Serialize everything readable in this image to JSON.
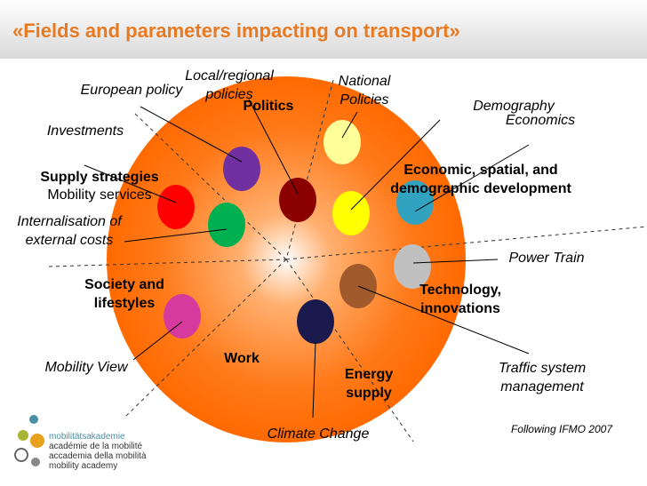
{
  "title": "«Fields and parameters impacting on transport»",
  "labels": [
    {
      "lines": [
        "Local/regional",
        "policies"
      ]
    },
    {
      "lines": [
        "European policy"
      ]
    },
    {
      "lines": [
        "Politics"
      ]
    },
    {
      "lines": [
        "National",
        "Policies"
      ]
    },
    {
      "lines": [
        "Demography"
      ]
    },
    {
      "lines": [
        "Economics"
      ]
    },
    {
      "lines": [
        "Investments"
      ]
    },
    {
      "lines": [
        "Supply strategies"
      ]
    },
    {
      "lines": [
        "Mobility services"
      ]
    },
    {
      "lines": [
        "Internalisation of",
        "external costs"
      ]
    },
    {
      "lines": [
        "Economic, spatial, and",
        "demographic development"
      ]
    },
    {
      "lines": [
        "Power Train"
      ]
    },
    {
      "lines": [
        "Society and",
        "lifestyles"
      ]
    },
    {
      "lines": [
        "Technology,",
        "innovations"
      ]
    },
    {
      "lines": [
        "Work"
      ]
    },
    {
      "lines": [
        "Mobility View"
      ]
    },
    {
      "lines": [
        "Energy",
        "supply"
      ]
    },
    {
      "lines": [
        "Traffic system",
        "management"
      ]
    },
    {
      "lines": [
        "Climate Change"
      ]
    },
    {
      "lines": [
        "Following IFMO 2007"
      ]
    }
  ],
  "logo": {
    "lines": [
      "mobilitätsakademie",
      "académie de la mobilité",
      "accademia della mobilità",
      "mobility academy"
    ]
  }
}
